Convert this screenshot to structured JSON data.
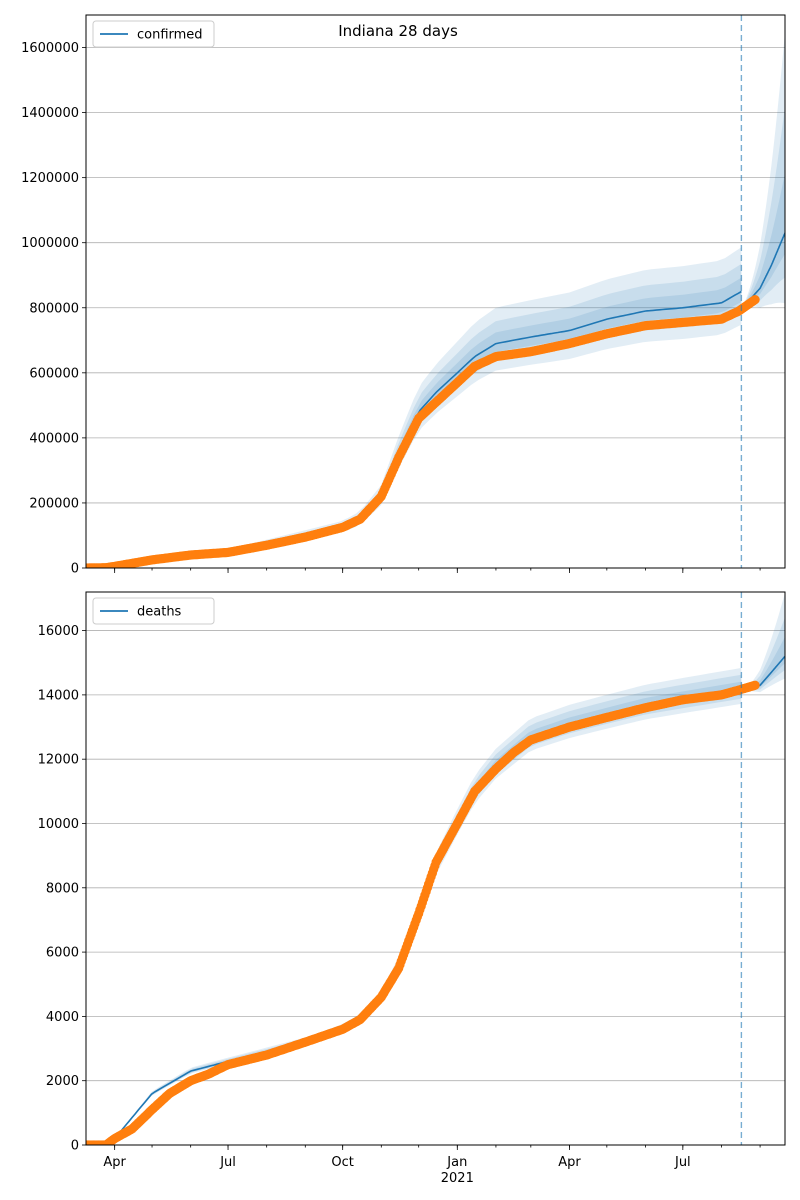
{
  "figure": {
    "suptitle": "Indiana 28 days"
  },
  "chart_data": [
    {
      "type": "line",
      "legend": {
        "label": "confirmed",
        "placement": "top-left"
      },
      "ylim": [
        0,
        1700000
      ],
      "yticks": [
        0,
        200000,
        400000,
        600000,
        800000,
        1000000,
        1200000,
        1400000,
        1600000
      ],
      "ytick_labels": [
        "0",
        "200000",
        "400000",
        "600000",
        "800000",
        "1000000",
        "1200000",
        "1400000",
        "1600000"
      ],
      "xticks_shown": false,
      "grid": "y",
      "xlim": [
        "2020-03-09",
        "2021-09-21"
      ],
      "forecast_start": "2021-08-17",
      "colors": {
        "model": "#1f77b4",
        "observed": "#ff7f0e",
        "divider": "#1f77b4"
      },
      "model_line": [
        [
          "2020-03-09",
          0
        ],
        [
          "2020-04-01",
          5000
        ],
        [
          "2020-05-01",
          25000
        ],
        [
          "2020-06-01",
          40000
        ],
        [
          "2020-07-01",
          50000
        ],
        [
          "2020-08-01",
          75000
        ],
        [
          "2020-09-01",
          100000
        ],
        [
          "2020-10-01",
          125000
        ],
        [
          "2020-10-15",
          150000
        ],
        [
          "2020-11-01",
          220000
        ],
        [
          "2020-11-15",
          350000
        ],
        [
          "2020-12-01",
          480000
        ],
        [
          "2020-12-15",
          540000
        ],
        [
          "2021-01-01",
          600000
        ],
        [
          "2021-01-15",
          650000
        ],
        [
          "2021-02-01",
          690000
        ],
        [
          "2021-03-01",
          710000
        ],
        [
          "2021-04-01",
          730000
        ],
        [
          "2021-05-01",
          765000
        ],
        [
          "2021-06-01",
          790000
        ],
        [
          "2021-07-01",
          800000
        ],
        [
          "2021-08-01",
          815000
        ],
        [
          "2021-08-17",
          850000
        ]
      ],
      "forecast_line": [
        [
          "2021-08-17",
          800000
        ],
        [
          "2021-08-25",
          830000
        ],
        [
          "2021-09-01",
          860000
        ],
        [
          "2021-09-10",
          930000
        ],
        [
          "2021-09-21",
          1030000
        ]
      ],
      "observed": [
        [
          "2020-03-09",
          0
        ],
        [
          "2020-03-25",
          1000
        ],
        [
          "2020-04-01",
          5000
        ],
        [
          "2020-05-01",
          25000
        ],
        [
          "2020-06-01",
          40000
        ],
        [
          "2020-07-01",
          48000
        ],
        [
          "2020-08-01",
          70000
        ],
        [
          "2020-09-01",
          95000
        ],
        [
          "2020-10-01",
          125000
        ],
        [
          "2020-10-15",
          150000
        ],
        [
          "2020-11-01",
          220000
        ],
        [
          "2020-11-15",
          340000
        ],
        [
          "2020-12-01",
          460000
        ],
        [
          "2020-12-15",
          510000
        ],
        [
          "2021-01-01",
          570000
        ],
        [
          "2021-01-15",
          620000
        ],
        [
          "2021-02-01",
          650000
        ],
        [
          "2021-03-01",
          665000
        ],
        [
          "2021-04-01",
          690000
        ],
        [
          "2021-05-01",
          720000
        ],
        [
          "2021-06-01",
          745000
        ],
        [
          "2021-07-01",
          755000
        ],
        [
          "2021-08-01",
          765000
        ],
        [
          "2021-08-15",
          790000
        ],
        [
          "2021-08-28",
          825000
        ]
      ]
    },
    {
      "type": "line",
      "legend": {
        "label": "deaths",
        "placement": "top-left"
      },
      "ylim": [
        0,
        17200
      ],
      "yticks": [
        0,
        2000,
        4000,
        6000,
        8000,
        10000,
        12000,
        14000,
        16000
      ],
      "ytick_labels": [
        "0",
        "2000",
        "4000",
        "6000",
        "8000",
        "10000",
        "12000",
        "14000",
        "16000"
      ],
      "grid": "y",
      "xlim": [
        "2020-03-09",
        "2021-09-21"
      ],
      "xticks": [
        {
          "date": "2020-04-01",
          "label": "Apr"
        },
        {
          "date": "2020-07-01",
          "label": "Jul"
        },
        {
          "date": "2020-10-01",
          "label": "Oct"
        },
        {
          "date": "2021-01-01",
          "label": "Jan"
        },
        {
          "date": "2021-04-01",
          "label": "Apr"
        },
        {
          "date": "2021-07-01",
          "label": "Jul"
        }
      ],
      "xlabel_year": "2021",
      "forecast_start": "2021-08-17",
      "colors": {
        "model": "#1f77b4",
        "observed": "#ff7f0e",
        "divider": "#1f77b4"
      },
      "model_line": [
        [
          "2020-03-09",
          0
        ],
        [
          "2020-03-25",
          0
        ],
        [
          "2020-04-01",
          200
        ],
        [
          "2020-05-01",
          1600
        ],
        [
          "2020-06-01",
          2300
        ],
        [
          "2020-07-01",
          2600
        ],
        [
          "2020-08-01",
          2900
        ],
        [
          "2020-09-01",
          3200
        ],
        [
          "2020-10-01",
          3600
        ],
        [
          "2020-10-15",
          3900
        ],
        [
          "2020-11-01",
          4600
        ],
        [
          "2020-11-15",
          5600
        ],
        [
          "2020-12-01",
          7200
        ],
        [
          "2020-12-15",
          8700
        ],
        [
          "2021-01-01",
          10000
        ],
        [
          "2021-01-15",
          11000
        ],
        [
          "2021-02-01",
          11800
        ],
        [
          "2021-03-01",
          12700
        ],
        [
          "2021-04-01",
          13100
        ],
        [
          "2021-05-01",
          13400
        ],
        [
          "2021-06-01",
          13700
        ],
        [
          "2021-07-01",
          13900
        ],
        [
          "2021-08-17",
          14200
        ]
      ],
      "forecast_line": [
        [
          "2021-08-17",
          14100
        ],
        [
          "2021-09-01",
          14300
        ],
        [
          "2021-09-10",
          14700
        ],
        [
          "2021-09-21",
          15200
        ]
      ],
      "observed": [
        [
          "2020-03-09",
          0
        ],
        [
          "2020-03-25",
          0
        ],
        [
          "2020-04-01",
          200
        ],
        [
          "2020-04-15",
          500
        ],
        [
          "2020-05-01",
          1100
        ],
        [
          "2020-05-15",
          1600
        ],
        [
          "2020-06-01",
          2000
        ],
        [
          "2020-06-15",
          2200
        ],
        [
          "2020-07-01",
          2500
        ],
        [
          "2020-08-01",
          2800
        ],
        [
          "2020-09-01",
          3200
        ],
        [
          "2020-10-01",
          3600
        ],
        [
          "2020-10-15",
          3900
        ],
        [
          "2020-11-01",
          4600
        ],
        [
          "2020-11-15",
          5500
        ],
        [
          "2020-12-01",
          7200
        ],
        [
          "2020-12-15",
          8800
        ],
        [
          "2021-01-01",
          10000
        ],
        [
          "2021-01-15",
          11000
        ],
        [
          "2021-02-01",
          11700
        ],
        [
          "2021-02-15",
          12200
        ],
        [
          "2021-03-01",
          12600
        ],
        [
          "2021-04-01",
          13000
        ],
        [
          "2021-05-01",
          13300
        ],
        [
          "2021-06-01",
          13600
        ],
        [
          "2021-07-01",
          13850
        ],
        [
          "2021-08-01",
          14000
        ],
        [
          "2021-08-15",
          14150
        ],
        [
          "2021-08-28",
          14300
        ]
      ]
    }
  ]
}
